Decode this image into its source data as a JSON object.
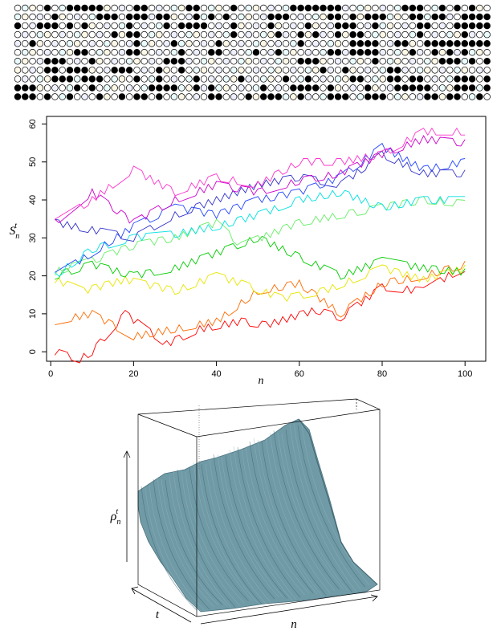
{
  "chart_data": [
    {
      "type": "table",
      "description_note": "",
      "rows": [
        "0000100111110000110000011000010000000111111100000000111001010100",
        "0000010000011101110110001010100000111000001101011100011011001111",
        "1001110101000001000010111100010000100001000111001000001100011111",
        "0000000000000101100000000000010000010010100101100000001000001000",
        "0010000000000000100001000001000000000010000001111001100111111111",
        "0000000011000001100000100011000010010000001101111000010010101000",
        "0000111000100000000011100000000000000011100000001000000001110101",
        "0000110111000111000100100000000000000000010010000011000000000000",
        "0000011101110000100100001000001000001001000001100011011000011101",
        "1110000010100000001111001010000001000111101000010001111100011101",
        "1110100100010010110100000011000101110010001110011100000110110010"
      ]
    },
    {
      "type": "line",
      "xlabel": "n",
      "ylabel_main": "S",
      "ylabel_sub": "n",
      "ylabel_sup": "t",
      "xlim": [
        1,
        100
      ],
      "ylim": [
        -2,
        60
      ],
      "xticks": [
        0,
        20,
        40,
        60,
        80,
        100
      ],
      "yticks": [
        0,
        10,
        20,
        30,
        40,
        50,
        60
      ],
      "grid": false,
      "series": [
        {
          "color": "#ff0000",
          "x": [
            1,
            7,
            10,
            18,
            28,
            36,
            46,
            52,
            64,
            70,
            80,
            90,
            96,
            100
          ],
          "y": [
            0,
            -2,
            0,
            10,
            2,
            6,
            8,
            7,
            11,
            9,
            17,
            16,
            20,
            22
          ]
        },
        {
          "color": "#ff6a00",
          "x": [
            1,
            10,
            20,
            30,
            40,
            50,
            60,
            70,
            80,
            90,
            100
          ],
          "y": [
            8,
            10,
            4,
            6,
            8,
            16,
            18,
            10,
            18,
            20,
            23
          ]
        },
        {
          "color": "#e6e600",
          "x": [
            1,
            8,
            18,
            30,
            40,
            46,
            56,
            66,
            80,
            90,
            100
          ],
          "y": [
            19,
            16,
            19,
            16,
            20,
            18,
            14,
            16,
            22,
            19,
            22
          ]
        },
        {
          "color": "#00cc00",
          "x": [
            1,
            10,
            20,
            30,
            40,
            50,
            60,
            70,
            80,
            90,
            100
          ],
          "y": [
            20,
            23,
            20,
            22,
            26,
            30,
            25,
            20,
            24,
            22,
            21
          ]
        },
        {
          "color": "#66ee66",
          "x": [
            1,
            10,
            20,
            30,
            40,
            46,
            60,
            70,
            80,
            90,
            100
          ],
          "y": [
            21,
            24,
            28,
            30,
            34,
            28,
            34,
            36,
            38,
            40,
            39
          ]
        },
        {
          "color": "#00e0e0",
          "x": [
            1,
            10,
            20,
            30,
            40,
            50,
            60,
            70,
            80,
            90,
            100
          ],
          "y": [
            20,
            27,
            30,
            31,
            33,
            36,
            40,
            42,
            38,
            40,
            40
          ]
        },
        {
          "color": "#2244ff",
          "x": [
            1,
            10,
            20,
            30,
            40,
            50,
            60,
            70,
            80,
            90,
            100
          ],
          "y": [
            20,
            26,
            33,
            38,
            36,
            40,
            42,
            46,
            54,
            48,
            50
          ]
        },
        {
          "color": "#3333cc",
          "x": [
            1,
            20,
            30,
            40,
            50,
            60,
            70,
            80,
            90,
            100
          ],
          "y": [
            34,
            30,
            36,
            40,
            44,
            46,
            44,
            52,
            47,
            47
          ]
        },
        {
          "color": "#cc00cc",
          "x": [
            1,
            10,
            20,
            30,
            40,
            50,
            60,
            70,
            80,
            90,
            100
          ],
          "y": [
            34,
            42,
            34,
            40,
            44,
            42,
            45,
            47,
            52,
            56,
            55
          ]
        },
        {
          "color": "#ff33cc",
          "x": [
            1,
            10,
            20,
            30,
            40,
            50,
            60,
            70,
            80,
            90,
            100
          ],
          "y": [
            34,
            40,
            48,
            42,
            46,
            44,
            50,
            50,
            52,
            58,
            58
          ]
        }
      ]
    },
    {
      "type": "surface",
      "xlabel": "n",
      "ylabel": "t",
      "zlabel_main": "ρ",
      "zlabel_sub": "n",
      "zlabel_sup": "t",
      "surface_color": "#6f9aa6"
    }
  ]
}
